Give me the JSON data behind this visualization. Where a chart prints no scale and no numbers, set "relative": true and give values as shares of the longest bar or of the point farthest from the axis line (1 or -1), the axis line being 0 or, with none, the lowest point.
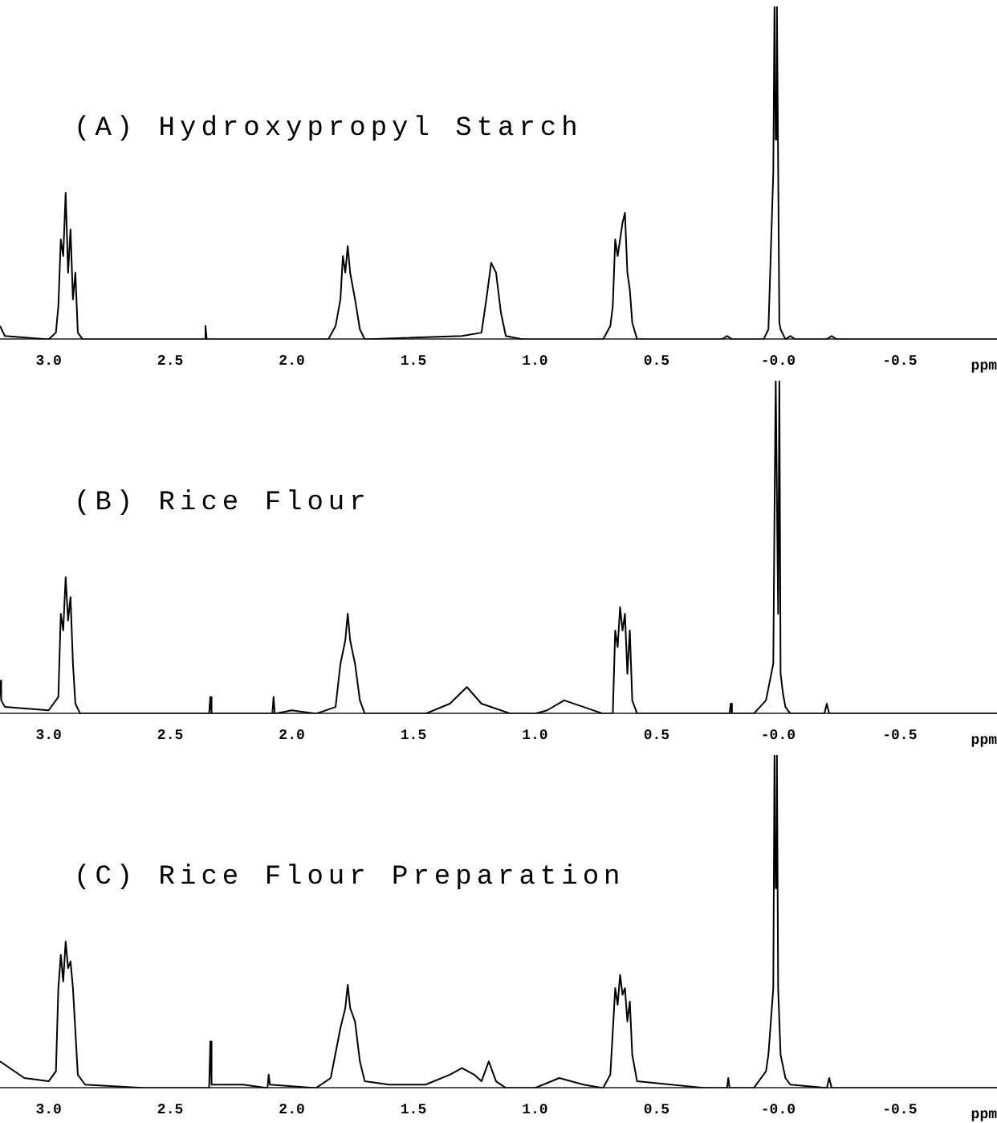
{
  "chart_data": [
    {
      "type": "line",
      "title": "(A) Hydroxypropyl Starch",
      "xlabel": "ppm",
      "xlim": [
        3.2,
        -0.9
      ],
      "xticks": [
        {
          "value": 3,
          "label": "3.0"
        },
        {
          "value": 2.5,
          "label": "2.5"
        },
        {
          "value": 2,
          "label": "2.0"
        },
        {
          "value": 1.5,
          "label": "1.5"
        },
        {
          "value": 1,
          "label": "1.0"
        },
        {
          "value": 0.5,
          "label": "0.5"
        },
        {
          "value": 0,
          "label": "-0.0"
        },
        {
          "value": -0.5,
          "label": "-0.5"
        }
      ],
      "relative": true,
      "grid": false,
      "marker": "none",
      "series": [
        {
          "color": "#000000",
          "x": [
            3.2,
            3.18,
            3.0,
            2.97,
            2.96,
            2.95,
            2.94,
            2.93,
            2.92,
            2.91,
            2.9,
            2.89,
            2.88,
            2.86,
            2.36,
            2.355,
            2.35,
            1.85,
            1.82,
            1.8,
            1.79,
            1.78,
            1.77,
            1.76,
            1.74,
            1.72,
            1.7,
            1.3,
            1.22,
            1.2,
            1.18,
            1.16,
            1.14,
            1.12,
            1.05,
            0.72,
            0.69,
            0.68,
            0.67,
            0.66,
            0.64,
            0.63,
            0.62,
            0.61,
            0.6,
            0.58,
            0.23,
            0.21,
            0.19,
            0.06,
            0.04,
            0.02,
            0.015,
            0.01,
            0.005,
            -0.005,
            -0.01,
            -0.03,
            -0.05,
            -0.07,
            -0.2,
            -0.22,
            -0.24,
            -0.9
          ],
          "values": [
            0.04,
            0.01,
            0.0,
            0.02,
            0.1,
            0.3,
            0.25,
            0.44,
            0.2,
            0.33,
            0.12,
            0.2,
            0.02,
            0.0,
            0.0,
            0.04,
            0.0,
            0.0,
            0.04,
            0.12,
            0.25,
            0.2,
            0.28,
            0.2,
            0.12,
            0.03,
            0.0,
            0.01,
            0.02,
            0.12,
            0.23,
            0.2,
            0.08,
            0.01,
            0.0,
            0.0,
            0.04,
            0.1,
            0.3,
            0.25,
            0.35,
            0.38,
            0.2,
            0.15,
            0.05,
            0.0,
            0.0,
            0.01,
            0.0,
            0.0,
            0.03,
            0.5,
            1.0,
            0.6,
            1.0,
            0.05,
            0.03,
            0.0,
            0.01,
            0.0,
            0.0,
            0.01,
            0.0,
            0.0
          ]
        }
      ]
    },
    {
      "type": "line",
      "title": "(B) Rice Flour",
      "xlabel": "ppm",
      "xlim": [
        3.2,
        -0.9
      ],
      "xticks": [
        {
          "value": 3,
          "label": "3.0"
        },
        {
          "value": 2.5,
          "label": "2.5"
        },
        {
          "value": 2,
          "label": "2.0"
        },
        {
          "value": 1.5,
          "label": "1.5"
        },
        {
          "value": 1,
          "label": "1.0"
        },
        {
          "value": 0.5,
          "label": "0.5"
        },
        {
          "value": 0,
          "label": "-0.0"
        },
        {
          "value": -0.5,
          "label": "-0.5"
        }
      ],
      "relative": true,
      "grid": false,
      "marker": "none",
      "series": [
        {
          "color": "#000000",
          "x": [
            3.2,
            3.195,
            3.18,
            3.0,
            2.96,
            2.95,
            2.94,
            2.93,
            2.92,
            2.91,
            2.9,
            2.89,
            2.87,
            2.8,
            2.34,
            2.335,
            2.33,
            2.08,
            2.075,
            2.07,
            2.0,
            1.9,
            1.82,
            1.8,
            1.78,
            1.77,
            1.76,
            1.74,
            1.72,
            1.7,
            1.6,
            1.45,
            1.35,
            1.28,
            1.22,
            1.1,
            1.0,
            0.95,
            0.88,
            0.8,
            0.72,
            0.68,
            0.67,
            0.66,
            0.65,
            0.64,
            0.63,
            0.62,
            0.61,
            0.6,
            0.58,
            0.3,
            0.2,
            0.195,
            0.19,
            0.1,
            0.05,
            0.02,
            0.015,
            0.01,
            0.0,
            -0.005,
            -0.01,
            -0.02,
            -0.03,
            -0.05,
            -0.19,
            -0.2,
            -0.21,
            -0.9
          ],
          "values": [
            0.1,
            0.04,
            0.02,
            0.01,
            0.05,
            0.3,
            0.25,
            0.41,
            0.28,
            0.35,
            0.15,
            0.03,
            0.0,
            0.0,
            0.0,
            0.05,
            0.0,
            0.0,
            0.05,
            0.0,
            0.01,
            0.0,
            0.02,
            0.15,
            0.22,
            0.3,
            0.22,
            0.15,
            0.04,
            0.0,
            0.0,
            0.0,
            0.03,
            0.08,
            0.03,
            0.0,
            0.0,
            0.01,
            0.04,
            0.02,
            0.0,
            0.0,
            0.25,
            0.2,
            0.32,
            0.25,
            0.3,
            0.12,
            0.25,
            0.04,
            0.0,
            0.0,
            0.0,
            0.03,
            0.0,
            0.0,
            0.04,
            0.15,
            0.6,
            1.0,
            0.3,
            1.0,
            0.12,
            0.06,
            0.02,
            0.0,
            0.0,
            0.03,
            0.0,
            0.0
          ]
        }
      ]
    },
    {
      "type": "line",
      "title": "(C) Rice Flour Preparation",
      "xlabel": "ppm",
      "xlim": [
        3.2,
        -0.9
      ],
      "xticks": [
        {
          "value": 3,
          "label": "3.0"
        },
        {
          "value": 2.5,
          "label": "2.5"
        },
        {
          "value": 2,
          "label": "2.0"
        },
        {
          "value": 1.5,
          "label": "1.5"
        },
        {
          "value": 1,
          "label": "1.0"
        },
        {
          "value": 0.5,
          "label": "0.5"
        },
        {
          "value": 0,
          "label": "-0.0"
        },
        {
          "value": -0.5,
          "label": "-0.5"
        }
      ],
      "relative": true,
      "grid": false,
      "marker": "none",
      "series": [
        {
          "color": "#000000",
          "x": [
            3.2,
            3.1,
            3.0,
            2.97,
            2.96,
            2.95,
            2.94,
            2.93,
            2.92,
            2.91,
            2.9,
            2.88,
            2.85,
            2.6,
            2.34,
            2.335,
            2.33,
            2.2,
            2.1,
            2.095,
            2.09,
            1.9,
            1.84,
            1.8,
            1.78,
            1.77,
            1.76,
            1.74,
            1.72,
            1.7,
            1.6,
            1.45,
            1.35,
            1.3,
            1.25,
            1.22,
            1.2,
            1.19,
            1.18,
            1.16,
            1.12,
            1.0,
            0.9,
            0.8,
            0.72,
            0.69,
            0.67,
            0.66,
            0.65,
            0.64,
            0.63,
            0.62,
            0.61,
            0.6,
            0.58,
            0.3,
            0.21,
            0.205,
            0.2,
            0.1,
            0.05,
            0.04,
            0.02,
            0.015,
            0.01,
            0.005,
            0.0,
            -0.01,
            -0.03,
            -0.05,
            -0.2,
            -0.21,
            -0.22,
            -0.9
          ],
          "values": [
            0.08,
            0.03,
            0.02,
            0.05,
            0.3,
            0.4,
            0.32,
            0.44,
            0.36,
            0.38,
            0.3,
            0.04,
            0.01,
            0.0,
            0.0,
            0.14,
            0.01,
            0.01,
            0.0,
            0.04,
            0.01,
            0.0,
            0.03,
            0.18,
            0.24,
            0.31,
            0.24,
            0.2,
            0.08,
            0.02,
            0.01,
            0.01,
            0.04,
            0.06,
            0.04,
            0.02,
            0.06,
            0.08,
            0.06,
            0.02,
            0.0,
            0.0,
            0.03,
            0.01,
            0.0,
            0.04,
            0.3,
            0.25,
            0.34,
            0.28,
            0.3,
            0.2,
            0.26,
            0.1,
            0.02,
            0.0,
            0.0,
            0.03,
            0.0,
            0.0,
            0.05,
            0.1,
            0.3,
            1.0,
            0.6,
            1.0,
            0.3,
            0.1,
            0.03,
            0.01,
            0.0,
            0.03,
            0.0,
            0.0
          ]
        }
      ]
    }
  ]
}
